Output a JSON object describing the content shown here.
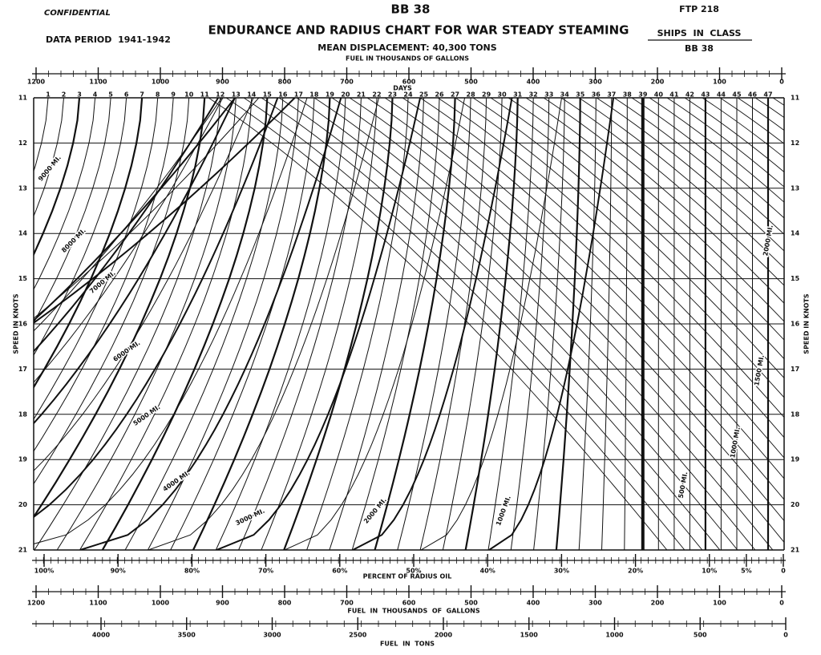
{
  "header": {
    "classification": "CONFIDENTIAL",
    "hull": "BB 38",
    "form": "FTP 218",
    "data_period": "DATA PERIOD  1941-1942",
    "title": "ENDURANCE AND RADIUS CHART FOR WAR STEADY STEAMING",
    "subtitle": "MEAN DISPLACEMENT: 40,300 TONS",
    "ships_label": "SHIPS  IN  CLASS",
    "ships": "BB 38"
  },
  "top_fuel_scale": {
    "title": "FUEL IN THOUSANDS OF GALLONS",
    "labels": [
      "1200",
      "1100",
      "1000",
      "900",
      "800",
      "700",
      "600",
      "500",
      "400",
      "300",
      "200",
      "100",
      "0"
    ]
  },
  "days_scale": {
    "title": "DAYS",
    "labels": [
      "1",
      "2",
      "3",
      "4",
      "5",
      "6",
      "7",
      "8",
      "9",
      "10",
      "11",
      "12",
      "13",
      "14",
      "15",
      "16",
      "17",
      "18",
      "19",
      "20",
      "21",
      "22",
      "23",
      "24",
      "25",
      "26",
      "27",
      "28",
      "29",
      "30",
      "31",
      "32",
      "33",
      "34",
      "35",
      "36",
      "37",
      "38",
      "39",
      "40",
      "41",
      "42",
      "43",
      "44",
      "45",
      "46",
      "47"
    ]
  },
  "speed_axis": {
    "title": "SPEED IN KNOTS",
    "labels": [
      "11",
      "12",
      "13",
      "14",
      "15",
      "16",
      "17",
      "18",
      "19",
      "20",
      "21"
    ]
  },
  "curve_labels": [
    "9000 MI.",
    "8000 MI.",
    "7000 MI.",
    "6000 MI.",
    "5000 MI.",
    "4000 MI.",
    "3000 MI.",
    "2000 MI.",
    "1000 MI.",
    "500 MI.",
    "1000 MI.",
    "1500 MI.",
    "2000 MI."
  ],
  "radius_scale": {
    "title": "PERCENT OF RADIUS OIL",
    "labels": [
      "100%",
      "90%",
      "80%",
      "70%",
      "60%",
      "50%",
      "40%",
      "30%",
      "20%",
      "10%",
      "5%",
      "0"
    ]
  },
  "bottom_fuel_scale": {
    "title": "FUEL  IN  THOUSANDS  OF  GALLONS",
    "labels": [
      "1200",
      "1100",
      "1000",
      "900",
      "800",
      "700",
      "600",
      "500",
      "400",
      "300",
      "200",
      "100",
      "0"
    ]
  },
  "tons_scale": {
    "title": "FUEL  IN  TONS",
    "labels": [
      "4000",
      "3500",
      "3000",
      "2500",
      "2000",
      "1500",
      "1000",
      "500",
      "0"
    ]
  }
}
